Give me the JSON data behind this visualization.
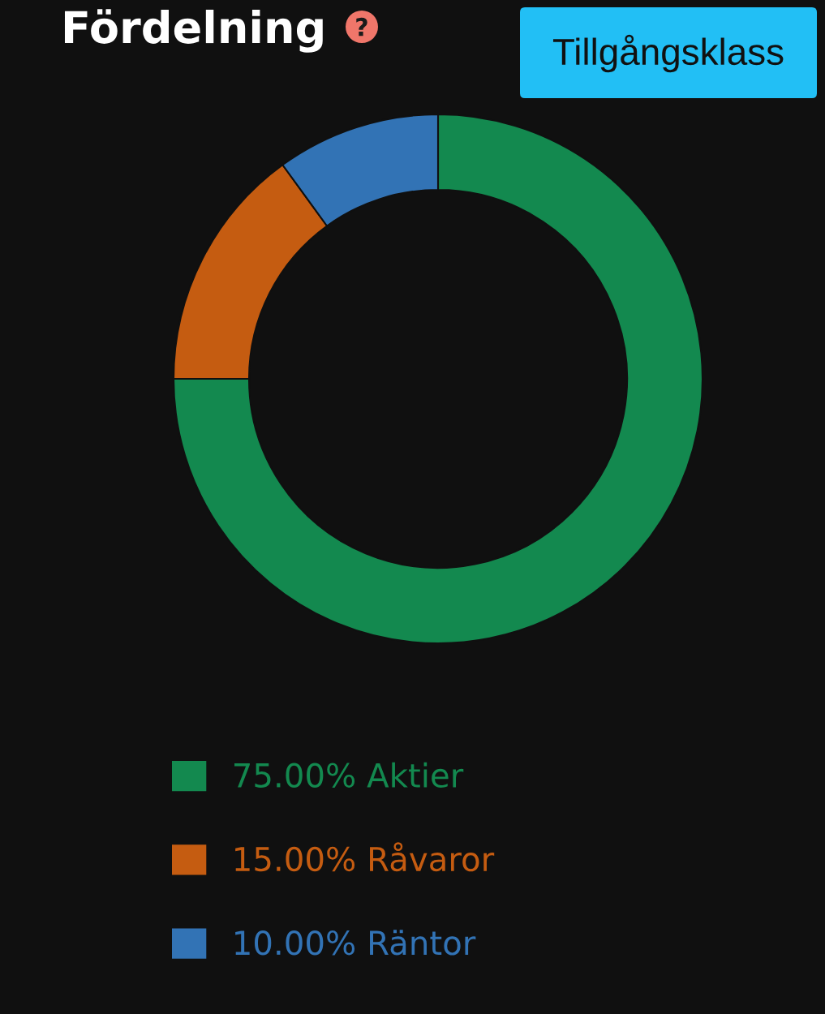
{
  "chart_data": {
    "type": "donut",
    "title": "Fördelning",
    "categories": [
      "Aktier",
      "Råvaror",
      "Räntor"
    ],
    "values": [
      75,
      15,
      10
    ],
    "colors": [
      "#13894f",
      "#c55c11",
      "#3273b5"
    ],
    "value_labels": [
      "75.00%",
      "15.00%",
      "10.00%"
    ],
    "legend": "bottom",
    "annotations": [
      "Tillgångsklass"
    ]
  }
}
